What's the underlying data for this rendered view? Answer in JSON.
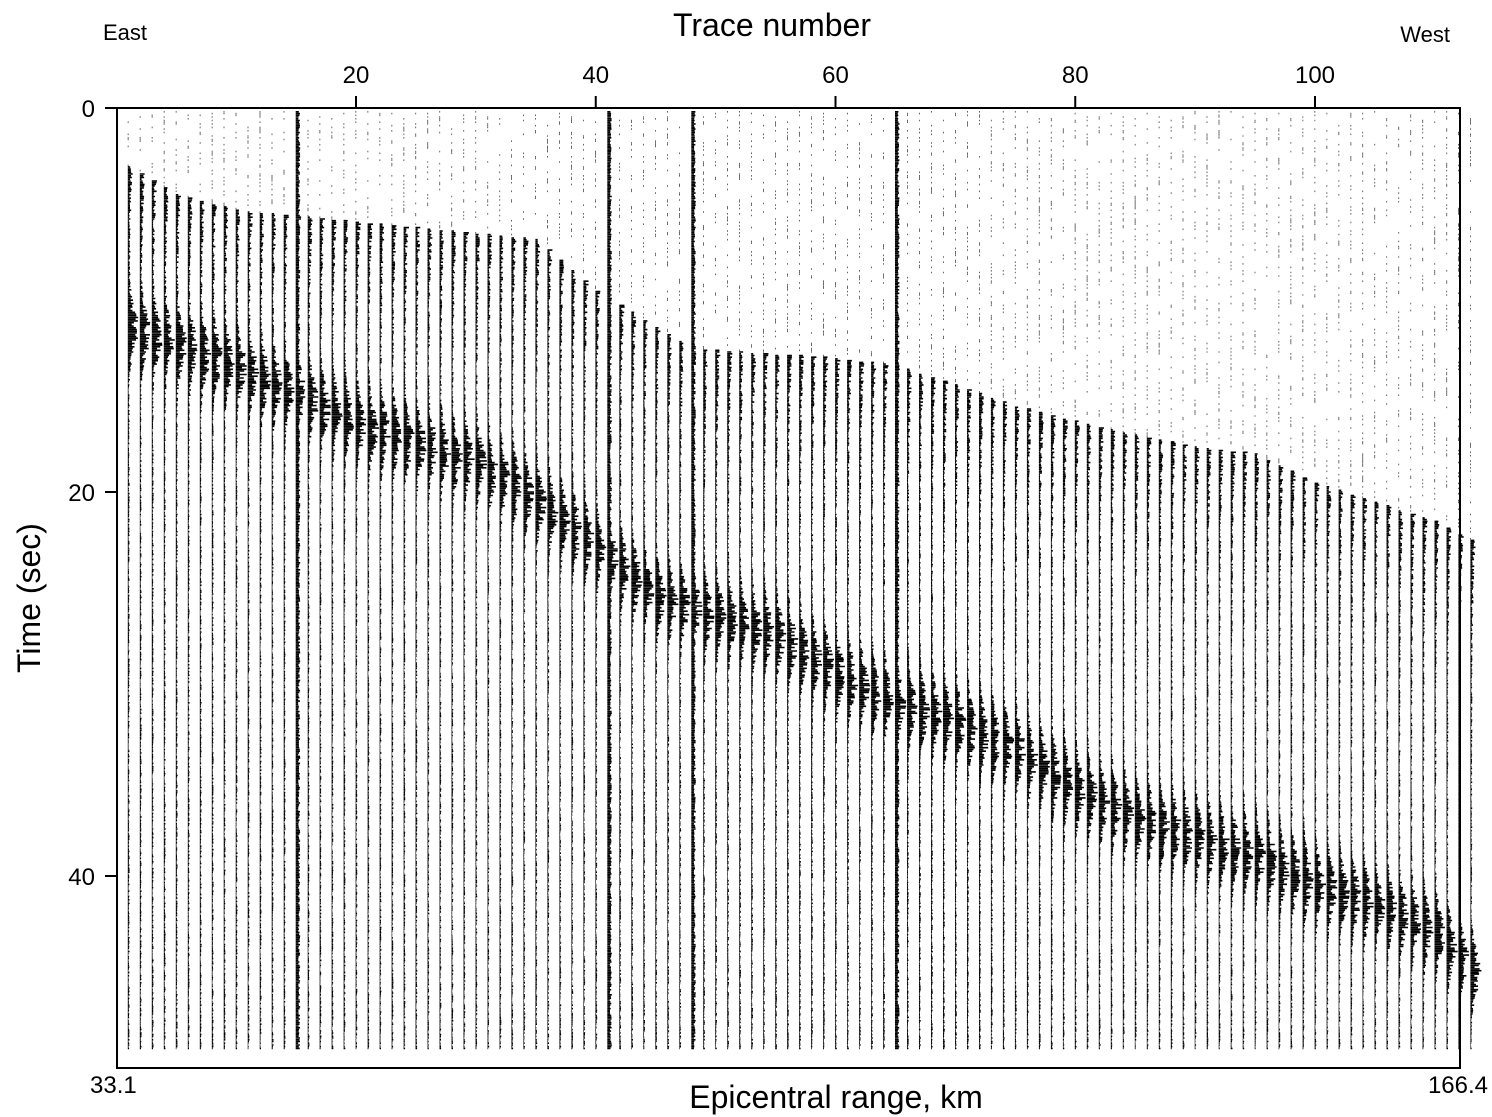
{
  "chart_data": {
    "type": "seismic-record-section",
    "top_axis_label": "Trace number",
    "bottom_axis_label": "Epicentral range, km",
    "y_axis_label": "Time (sec)",
    "corner_label_left": "East",
    "corner_label_right": "West",
    "range_min_label": "33.1",
    "range_max_label": "166.4",
    "trace_range": [
      1,
      113
    ],
    "trace_ticks": [
      20,
      40,
      60,
      80,
      100
    ],
    "time_range": [
      0,
      49
    ],
    "time_ticks": [
      0,
      20,
      40
    ],
    "range_km": [
      33.1,
      166.4
    ],
    "first_arrival_time_sec": {
      "traces": [
        1,
        5,
        10,
        15,
        20,
        25,
        30,
        35,
        40,
        44,
        48,
        55,
        60,
        65,
        70,
        75,
        80,
        85,
        90,
        95,
        100,
        105,
        110,
        113
      ],
      "times": [
        3.0,
        4.5,
        5.3,
        5.6,
        5.9,
        6.2,
        6.5,
        6.8,
        9.5,
        11.0,
        12.5,
        12.8,
        13.0,
        13.4,
        14.4,
        15.5,
        16.3,
        17.0,
        17.6,
        18.0,
        19.5,
        20.5,
        21.5,
        22.5
      ]
    },
    "secondary_phase_time_sec": {
      "traces": [
        1,
        10,
        20,
        30,
        35,
        40,
        45,
        50,
        55,
        60,
        65,
        70,
        75,
        80,
        85,
        90,
        95,
        100,
        105,
        110,
        113
      ],
      "times": [
        11.5,
        13.5,
        16.5,
        18.5,
        20.5,
        23.0,
        25.5,
        26.5,
        27.5,
        29.5,
        31.0,
        32.0,
        33.5,
        35.5,
        37.0,
        38.0,
        39.0,
        40.5,
        41.5,
        43.0,
        45.0
      ]
    },
    "high_amplitude_traces": [
      15,
      41,
      48,
      65
    ],
    "colors": {
      "ink": "#000000",
      "background": "#ffffff"
    }
  }
}
